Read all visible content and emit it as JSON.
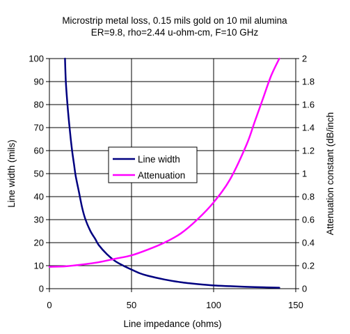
{
  "chart_data": {
    "type": "line",
    "title": [
      "Microstrip metal loss, 0.15 mils gold on 10 mil alumina",
      "ER=9.8,  rho=2.44 u-ohm-cm, F=10 GHz"
    ],
    "xlabel": "Line impedance (ohms)",
    "ylabel": "Line width (mils)",
    "y2label": "Attenuation constant (dB/inch",
    "xlim": [
      0,
      150
    ],
    "ylim": [
      0,
      100
    ],
    "y2lim": [
      0,
      2
    ],
    "xticks": [
      "0",
      "50",
      "100",
      "150"
    ],
    "yticks": [
      "0",
      "10",
      "20",
      "30",
      "40",
      "50",
      "60",
      "70",
      "80",
      "90",
      "100"
    ],
    "y2ticks": [
      "0",
      "0.2",
      "0.4",
      "0.6",
      "0.8",
      "1",
      "1.2",
      "1.4",
      "1.6",
      "1.8",
      "2"
    ],
    "grid": true,
    "legend_position": "center-left",
    "series": [
      {
        "name": "Line width",
        "axis": "left",
        "color": "#000080",
        "x": [
          9.5,
          10,
          11,
          12,
          13,
          14,
          15,
          16,
          18,
          20,
          22,
          25,
          28,
          30,
          35,
          40,
          45,
          50,
          55,
          60,
          70,
          80,
          90,
          100,
          110,
          120,
          130,
          140
        ],
        "y": [
          100,
          90,
          80,
          72,
          65,
          59,
          54,
          49,
          42,
          35,
          30,
          25,
          21.5,
          19,
          15,
          12,
          10,
          8.3,
          6.7,
          5.6,
          4,
          2.8,
          2,
          1.4,
          1.1,
          0.8,
          0.6,
          0.4
        ]
      },
      {
        "name": "Attenuation",
        "axis": "right",
        "color": "#ff00ff",
        "x": [
          0,
          10,
          20,
          30,
          40,
          50,
          60,
          70,
          80,
          90,
          100,
          110,
          120,
          125,
          130,
          135,
          140
        ],
        "y": [
          0.19,
          0.195,
          0.21,
          0.23,
          0.26,
          0.29,
          0.34,
          0.4,
          0.48,
          0.6,
          0.75,
          0.95,
          1.25,
          1.45,
          1.65,
          1.85,
          2.0
        ]
      }
    ]
  }
}
